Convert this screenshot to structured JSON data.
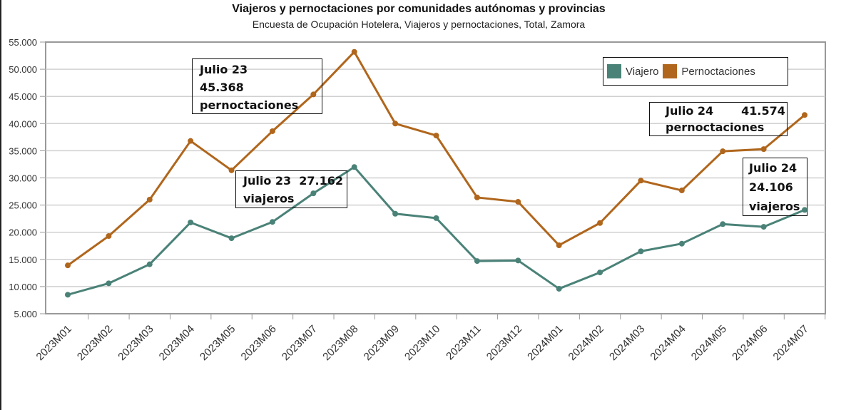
{
  "chart_data": {
    "type": "line",
    "title": "Viajeros y pernoctaciones por comunidades autónomas y provincias",
    "subtitle": "Encuesta de Ocupación Hotelera, Viajeros y pernoctaciones, Total, Zamora",
    "categories": [
      "2023M01",
      "2023M02",
      "2023M03",
      "2023M04",
      "2023M05",
      "2023M06",
      "2023M07",
      "2023M08",
      "2023M09",
      "2023M10",
      "2023M11",
      "2023M12",
      "2024M01",
      "2024M02",
      "2024M03",
      "2024M04",
      "2024M05",
      "2024M06",
      "2024M07"
    ],
    "series": [
      {
        "name": "Viajero",
        "color": "#4a8278",
        "values": [
          8500,
          10600,
          14100,
          21800,
          18900,
          21900,
          27162,
          32000,
          23400,
          22600,
          14700,
          14800,
          9600,
          12600,
          16500,
          17900,
          21500,
          21000,
          24106
        ]
      },
      {
        "name": "Pernoctaciones",
        "color": "#b0661c",
        "values": [
          13900,
          19300,
          26000,
          36800,
          31400,
          38600,
          45368,
          53200,
          40000,
          37800,
          26400,
          25600,
          17600,
          21700,
          29500,
          27700,
          34900,
          35300,
          41574
        ]
      }
    ],
    "ylim": [
      5000,
      55000
    ],
    "yticks": [
      "5.000",
      "10.000",
      "15.000",
      "20.000",
      "25.000",
      "30.000",
      "35.000",
      "40.000",
      "45.000",
      "50.000",
      "55.000"
    ],
    "grid": true,
    "legend": "top-right",
    "annotations": [
      {
        "text": "Julio 23\n45.368\npernoctaciones"
      },
      {
        "text": "Julio 23  27.162\nviajeros"
      },
      {
        "text": "Julio 24       41.574\npernoctaciones"
      },
      {
        "text": "Julio 24\n24.106\nviajeros"
      }
    ]
  }
}
